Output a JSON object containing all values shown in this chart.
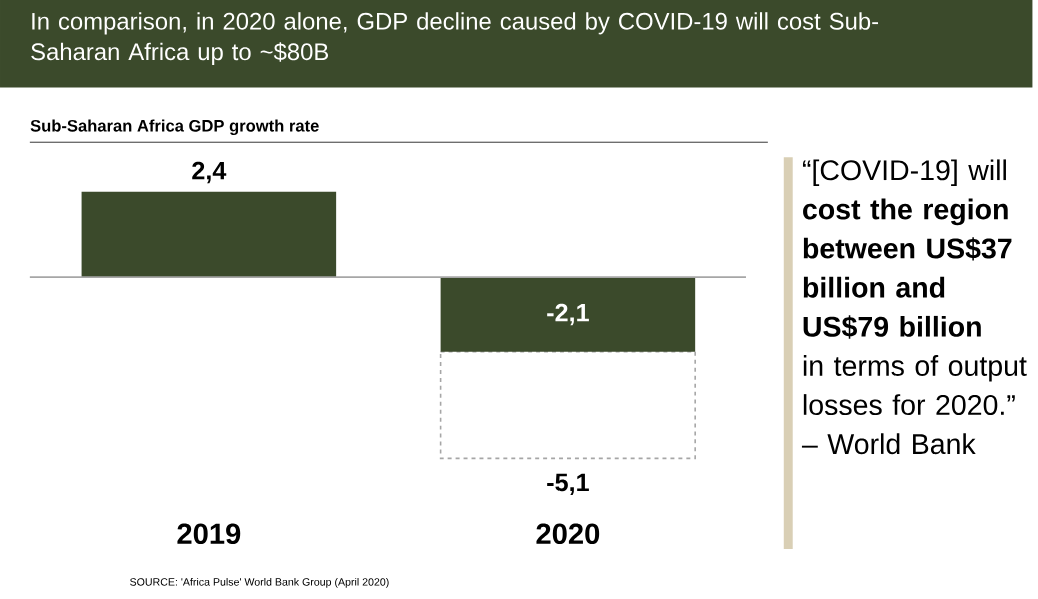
{
  "chart_data": {
    "type": "bar",
    "title": "In comparison, in 2020 alone, GDP decline caused by COVID-19 will cost Sub-Saharan Africa up to ~$80B",
    "subtitle": "Sub-Saharan Africa GDP growth rate",
    "categories": [
      "2019",
      "2020"
    ],
    "stacked": true,
    "totals": [
      null,
      "-5,1"
    ],
    "series": [
      {
        "color": "#3b4a2b",
        "values": [
          2.4,
          -2.1
        ],
        "value_labels": [
          "2,4",
          "-2,1"
        ]
      },
      {
        "color": "#a6a6a6",
        "line_style": "dashed",
        "values": [
          null,
          -3.0
        ]
      }
    ],
    "annotations": [
      "“[COVID-19] will **cost the region between US$37 billion and US$79 billion** in terms of output losses for 2020.” – World Bank",
      "SOURCE: 'Africa Pulse' World Bank Group (April 2020)"
    ]
  }
}
